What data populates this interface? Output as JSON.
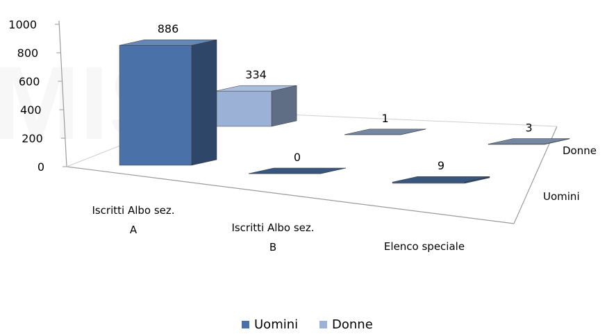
{
  "chart_data": {
    "type": "bar",
    "subtype": "3d-column-series-depth",
    "categories": [
      "Iscritti Albo sez. A",
      "Iscritti Albo sez. B",
      "Elenco speciale"
    ],
    "category_lines": [
      [
        "Iscritti Albo sez.",
        "A"
      ],
      [
        "Iscritti Albo sez.",
        "B"
      ],
      [
        "Elenco speciale"
      ]
    ],
    "series": [
      {
        "name": "Uomini",
        "values": [
          886,
          0,
          9
        ],
        "color": "#4a72a8"
      },
      {
        "name": "Donne",
        "values": [
          334,
          1,
          3
        ],
        "color": "#9bb2d6"
      }
    ],
    "depth_labels": [
      "Donne",
      "Uomini"
    ],
    "yticks": [
      "0",
      "200",
      "400",
      "600",
      "800",
      "1000"
    ],
    "ylim": [
      0,
      1000
    ],
    "legend_position": "bottom",
    "grid": false
  }
}
